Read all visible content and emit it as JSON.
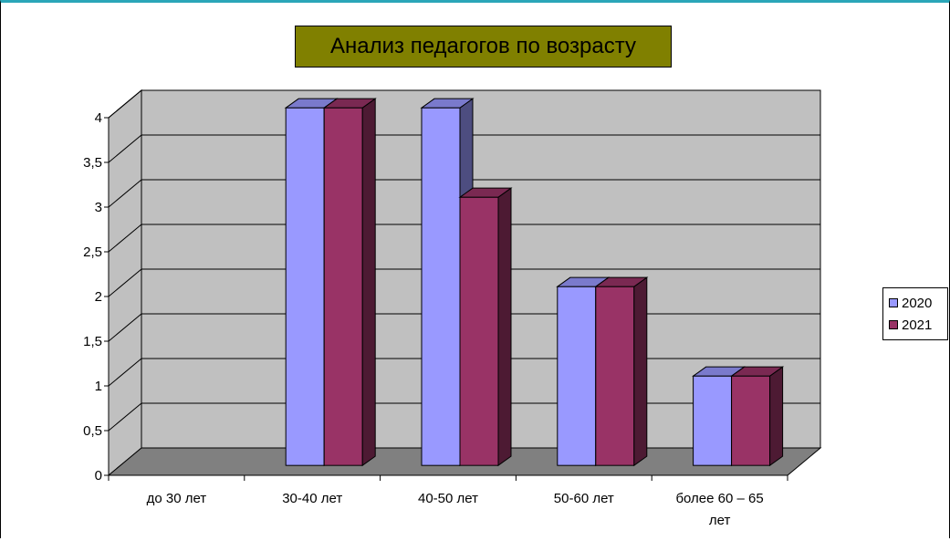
{
  "chart_data": {
    "type": "bar",
    "title": "Анализ педагогов по возрасту",
    "categories": [
      "до 30 лет",
      "30-40 лет",
      "40-50 лет",
      "50-60 лет",
      "более 60 – 65 лет"
    ],
    "series": [
      {
        "name": "2020",
        "values": [
          0,
          4,
          4,
          2,
          1
        ],
        "color": "#9999ff",
        "side_color": "#4d4d80",
        "top_color": "#7a7acc"
      },
      {
        "name": "2021",
        "values": [
          0,
          4,
          3,
          2,
          1
        ],
        "color": "#993366",
        "side_color": "#4d1a33",
        "top_color": "#7a2952"
      }
    ],
    "yticks": [
      "0",
      "0,5",
      "1",
      "1,5",
      "2",
      "2,5",
      "3",
      "3,5",
      "4"
    ],
    "ylim": [
      0,
      4
    ],
    "grid": true,
    "legend_position": "right",
    "xlabel": "",
    "ylabel": ""
  },
  "colors": {
    "title_background": "#808000",
    "wall": "#c0c0c0",
    "floor": "#808080",
    "border_accent": "#2aa6b8"
  }
}
